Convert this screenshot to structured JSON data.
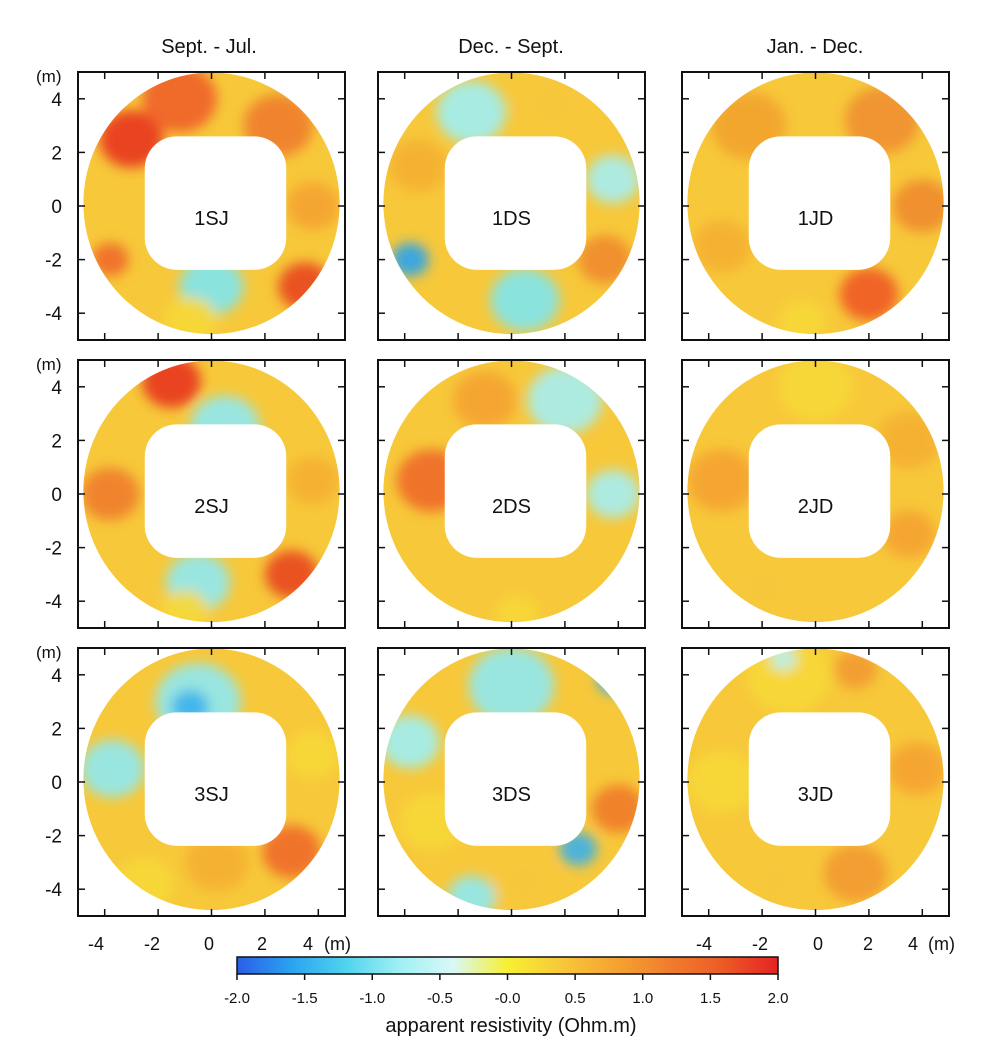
{
  "chart_data": {
    "type": "heatmap",
    "columns": [
      "Sept. - Jul.",
      "Dec. - Sept.",
      "Jan. - Dec."
    ],
    "y_unit": "(m)",
    "x_unit": "(m)",
    "xlim": [
      -5,
      5
    ],
    "ylim": [
      -5,
      5
    ],
    "yticks": [
      4,
      2,
      0,
      -2,
      -4
    ],
    "xticks": [
      -4,
      -2,
      0,
      2,
      4
    ],
    "panels": [
      {
        "label": "1SJ",
        "row": 0,
        "col": 0,
        "blobs": [
          [
            -3.0,
            2.5,
            1.2,
            -0.35,
            "#e8331f",
            0.5
          ],
          [
            -1.2,
            4.0,
            1.4,
            -0.3,
            "#f05f2a",
            0.5
          ],
          [
            2.5,
            3.0,
            1.3,
            -0.2,
            "#f07d2d",
            0.45
          ],
          [
            3.8,
            0.0,
            1.0,
            -0.1,
            "#f5a331",
            0.5
          ],
          [
            3.5,
            -3.0,
            1.0,
            -0.1,
            "#e8471f",
            0.4
          ],
          [
            0.0,
            -3.0,
            1.2,
            -0.2,
            "#7fe6f0",
            0.45
          ],
          [
            -0.8,
            -4.3,
            1.0,
            0.0,
            "#f7d838",
            0.4
          ],
          [
            -3.8,
            -2.0,
            0.7,
            0.8,
            "#f06a2a",
            0.6
          ]
        ]
      },
      {
        "label": "1DS",
        "row": 0,
        "col": 1,
        "blobs": [
          [
            -1.5,
            3.5,
            1.3,
            -0.2,
            "#9ff0f4",
            0.5
          ],
          [
            1.5,
            3.8,
            1.3,
            -0.25,
            "#f7c83a",
            0.45
          ],
          [
            -3.5,
            1.5,
            1.1,
            -0.15,
            "#f5b030",
            0.45
          ],
          [
            3.8,
            1.0,
            1.0,
            -0.2,
            "#a5eef2",
            0.5
          ],
          [
            3.5,
            -2.0,
            1.0,
            -0.3,
            "#f08a2c",
            0.45
          ],
          [
            0.5,
            -3.5,
            1.3,
            -0.3,
            "#7fe6f0",
            0.45
          ],
          [
            -3.8,
            -2.0,
            0.7,
            0.8,
            "#2aa3f0",
            0.6
          ]
        ]
      },
      {
        "label": "1JD",
        "row": 0,
        "col": 2,
        "blobs": [
          [
            -2.5,
            3.0,
            1.4,
            -0.35,
            "#f2a32f",
            0.45
          ],
          [
            2.5,
            3.2,
            1.4,
            -0.3,
            "#f09030",
            0.45
          ],
          [
            4.0,
            0.0,
            1.1,
            -0.3,
            "#f08a2c",
            0.45
          ],
          [
            2.0,
            -3.3,
            1.1,
            -0.4,
            "#ef5a25",
            0.4
          ],
          [
            -3.5,
            -1.5,
            1.1,
            -0.35,
            "#f5b030",
            0.45
          ],
          [
            -0.5,
            -4.3,
            0.9,
            0.0,
            "#f7d838",
            0.4
          ]
        ]
      },
      {
        "label": "2SJ",
        "row": 1,
        "col": 0,
        "blobs": [
          [
            -1.5,
            4.2,
            1.1,
            -0.35,
            "#e8331f",
            0.5
          ],
          [
            0.5,
            2.5,
            1.3,
            -0.25,
            "#8fe9f2",
            0.5
          ],
          [
            -3.8,
            0.0,
            1.1,
            -0.25,
            "#f07d2d",
            0.45
          ],
          [
            3.8,
            0.5,
            1.0,
            -0.2,
            "#f5b030",
            0.45
          ],
          [
            3.0,
            -3.0,
            1.0,
            -0.25,
            "#e8471f",
            0.45
          ],
          [
            -0.5,
            -3.3,
            1.2,
            -0.15,
            "#8fe9f2",
            0.45
          ],
          [
            -1.0,
            -4.4,
            0.9,
            0.0,
            "#f7d838",
            0.4
          ]
        ]
      },
      {
        "label": "2DS",
        "row": 1,
        "col": 1,
        "blobs": [
          [
            -3.0,
            0.5,
            1.3,
            -0.4,
            "#ef6a27",
            0.45
          ],
          [
            -1.0,
            3.5,
            1.2,
            -0.3,
            "#f5a331",
            0.45
          ],
          [
            2.0,
            3.5,
            1.4,
            -0.3,
            "#a5eef2",
            0.5
          ],
          [
            3.8,
            0.0,
            1.0,
            -0.2,
            "#a5eef2",
            0.5
          ],
          [
            0.2,
            -4.5,
            0.8,
            0.4,
            "#f7d838",
            0.6
          ]
        ]
      },
      {
        "label": "2JD",
        "row": 1,
        "col": 2,
        "blobs": [
          [
            -3.5,
            0.5,
            1.3,
            -0.3,
            "#f5a331",
            0.45
          ],
          [
            0.0,
            4.0,
            1.4,
            -0.3,
            "#f7d838",
            0.45
          ],
          [
            3.5,
            2.0,
            1.2,
            -0.3,
            "#f5b030",
            0.45
          ],
          [
            -2.0,
            -3.5,
            1.2,
            -0.25,
            "#f7c83a",
            0.45
          ],
          [
            3.5,
            -1.5,
            1.0,
            -0.2,
            "#f5a331",
            0.4
          ]
        ]
      },
      {
        "label": "3SJ",
        "row": 2,
        "col": 0,
        "blobs": [
          [
            -0.5,
            3.0,
            1.6,
            -0.25,
            "#8fe9f2",
            0.5
          ],
          [
            -0.8,
            2.8,
            0.7,
            0.0,
            "#3bb0ec",
            0.4
          ],
          [
            -3.7,
            0.5,
            1.2,
            -0.2,
            "#8fe9f2",
            0.5
          ],
          [
            3.8,
            1.0,
            1.0,
            -0.2,
            "#f7d838",
            0.45
          ],
          [
            3.0,
            -2.6,
            1.1,
            -0.3,
            "#ef6a27",
            0.45
          ],
          [
            0.2,
            -3.0,
            1.2,
            -0.25,
            "#f5b030",
            0.45
          ],
          [
            -2.5,
            -3.8,
            1.1,
            -0.15,
            "#f7d838",
            0.45
          ]
        ]
      },
      {
        "label": "3DS",
        "row": 2,
        "col": 1,
        "blobs": [
          [
            0.0,
            3.6,
            1.6,
            -0.2,
            "#8fe9f2",
            0.5
          ],
          [
            3.8,
            3.8,
            0.6,
            0.0,
            "#3bb0ec",
            0.4
          ],
          [
            -3.8,
            1.5,
            1.1,
            -0.15,
            "#9ff0f4",
            0.5
          ],
          [
            -3.0,
            -1.5,
            1.2,
            -0.2,
            "#f7d838",
            0.45
          ],
          [
            4.0,
            -1.0,
            1.0,
            -0.3,
            "#ef7a2a",
            0.45
          ],
          [
            2.5,
            -2.5,
            0.7,
            0.0,
            "#3bb0ec",
            0.4
          ],
          [
            0.5,
            -3.7,
            1.2,
            -0.2,
            "#f7c83a",
            0.45
          ],
          [
            -1.5,
            -4.3,
            0.9,
            -0.1,
            "#8fe9f2",
            0.45
          ]
        ]
      },
      {
        "label": "3JD",
        "row": 2,
        "col": 2,
        "blobs": [
          [
            -1.0,
            4.0,
            1.6,
            -0.2,
            "#f7d838",
            0.45
          ],
          [
            -1.2,
            4.6,
            0.5,
            0.0,
            "#b8f2f0",
            0.4
          ],
          [
            1.5,
            4.2,
            0.8,
            -0.2,
            "#f29a30",
            0.4
          ],
          [
            -3.5,
            0.0,
            1.3,
            -0.2,
            "#f7d838",
            0.45
          ],
          [
            3.8,
            0.5,
            1.1,
            -0.25,
            "#f5a331",
            0.45
          ],
          [
            1.5,
            -3.4,
            1.2,
            -0.3,
            "#f29a30",
            0.45
          ],
          [
            -1.5,
            -3.8,
            1.1,
            -0.2,
            "#f7c83a",
            0.45
          ]
        ]
      }
    ],
    "colorbar": {
      "label": "apparent resistivity (Ohm.m)",
      "ticks": [
        "-2.0",
        "-1.5",
        "-1.0",
        "-0.5",
        "-0.0",
        "0.5",
        "1.0",
        "1.5",
        "2.0"
      ],
      "range": [
        -2.0,
        2.0
      ],
      "stops": [
        "#2a5ee8",
        "#2aa3f0",
        "#4fd3ee",
        "#9ff0f4",
        "#d9f8f6",
        "#f7f032",
        "#f7c83a",
        "#f5a331",
        "#f07d2d",
        "#ec5a25",
        "#e42324"
      ]
    }
  }
}
